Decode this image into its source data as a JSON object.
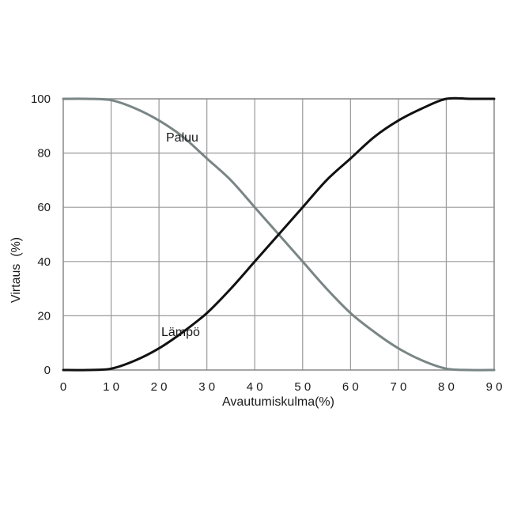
{
  "chart_data": {
    "type": "line",
    "xlabel": "Avautumiskulma(%)",
    "ylabel": "Virtaus  (%)",
    "xlim": [
      0,
      90
    ],
    "ylim": [
      0,
      100
    ],
    "xticks": [
      0,
      10,
      20,
      30,
      40,
      50,
      60,
      70,
      80,
      90
    ],
    "yticks": [
      0,
      20,
      40,
      60,
      80,
      100
    ],
    "grid": true,
    "series": [
      {
        "name": "Paluu",
        "color": "#7a8585",
        "x": [
          0,
          5,
          10,
          15,
          20,
          25,
          30,
          35,
          40,
          45,
          50,
          55,
          60,
          65,
          70,
          75,
          80,
          85,
          90
        ],
        "y": [
          100,
          100,
          99.5,
          96.5,
          92,
          86,
          78,
          70,
          60,
          50,
          40,
          30,
          21,
          14,
          8,
          3.5,
          0.5,
          0,
          0
        ]
      },
      {
        "name": "Lämpö",
        "color": "#111111",
        "x": [
          0,
          5,
          10,
          15,
          20,
          25,
          30,
          35,
          40,
          45,
          50,
          55,
          60,
          65,
          70,
          75,
          80,
          85,
          90
        ],
        "y": [
          0,
          0,
          0.5,
          3.5,
          8,
          14,
          21,
          30,
          40,
          50,
          60,
          70,
          78,
          86,
          92,
          96.5,
          100,
          100,
          100
        ]
      }
    ]
  }
}
